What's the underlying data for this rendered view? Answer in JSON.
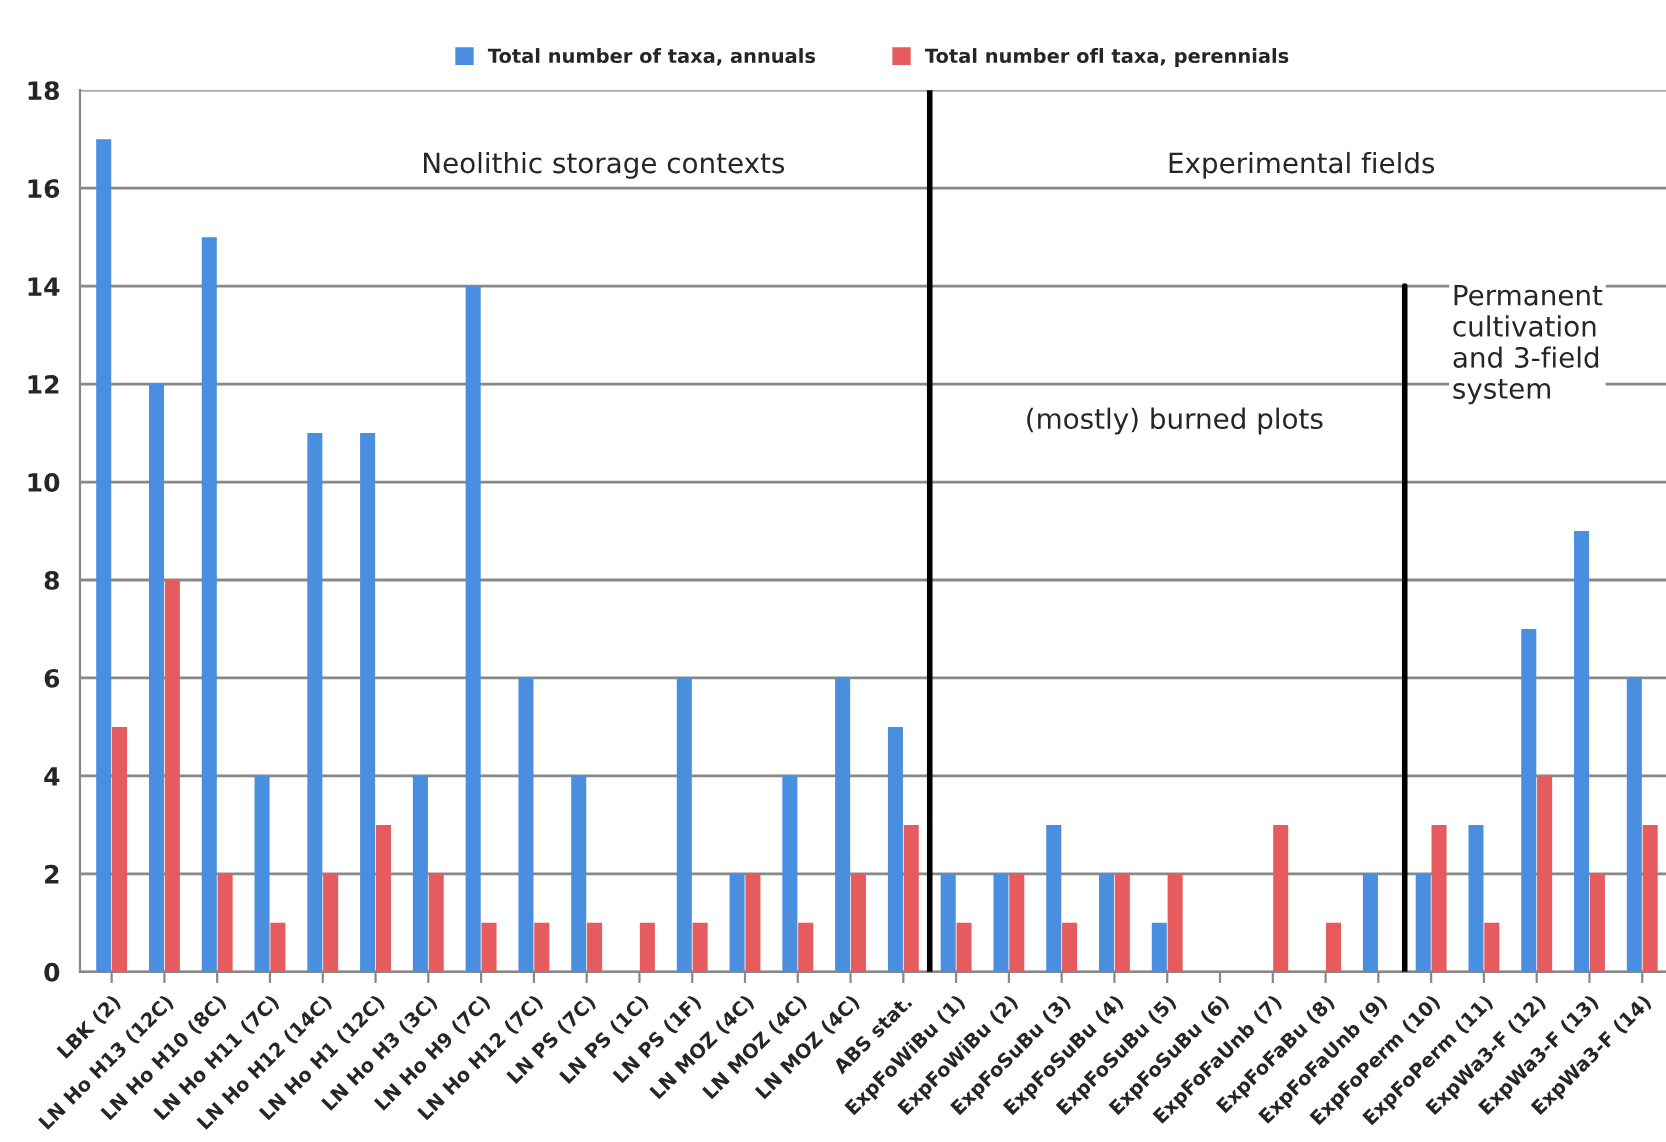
{
  "chart_data": {
    "type": "bar",
    "categories": [
      "LBK (2)",
      "LN Ho H13 (12C)",
      "LN Ho H10 (8C)",
      "LN Ho H11 (7C)",
      "LN Ho H12 (14C)",
      "LN Ho H1 (12C)",
      "LN Ho H3 (3C)",
      "LN Ho H9 (7C)",
      "LN Ho H12 (7C)",
      "LN PS (7C)",
      "LN PS (1C)",
      "LN PS (1F)",
      "LN MOZ (4C)",
      "LN MOZ (4C)",
      "LN MOZ (4C)",
      "ABS stat.",
      "ExpFoWiBu (1)",
      "ExpFoWiBu (2)",
      "ExpFoSuBu (3)",
      "ExpFoSuBu (4)",
      "ExpFoSuBu (5)",
      "ExpFoSuBu (6)",
      "ExpFoFaUnb (7)",
      "ExpFoFaBu (8)",
      "ExpFoFaUnb (9)",
      "ExpFoPerm (10)",
      "ExpFoPerm (11)",
      "ExpWa3-F (12)",
      "ExpWa3-F (13)",
      "ExpWa3-F (14)"
    ],
    "series": [
      {
        "name": "Total number of taxa, annuals",
        "color": "#4a8ee0",
        "values": [
          17,
          12,
          15,
          4,
          11,
          11,
          4,
          14,
          6,
          4,
          0,
          6,
          2,
          4,
          6,
          5,
          2,
          2,
          3,
          2,
          1,
          0,
          0,
          0,
          2,
          2,
          3,
          7,
          9,
          6
        ]
      },
      {
        "name": "Total number ofl taxa, perennials",
        "color": "#e65c5e",
        "values": [
          5,
          8,
          2,
          1,
          2,
          3,
          2,
          1,
          1,
          1,
          1,
          1,
          2,
          1,
          2,
          3,
          1,
          2,
          1,
          2,
          2,
          0,
          3,
          1,
          0,
          3,
          1,
          4,
          2,
          3
        ]
      }
    ],
    "ylim": [
      0,
      18
    ],
    "yticks": [
      0,
      2,
      4,
      6,
      8,
      10,
      12,
      14,
      16,
      18
    ],
    "grid": "y",
    "legend": "top",
    "annotations": [
      "Neolithic storage contexts",
      "Experimental fields",
      "(mostly) burned plots",
      "Permanent\ncultivation\nand 3-field\nsystem"
    ]
  }
}
